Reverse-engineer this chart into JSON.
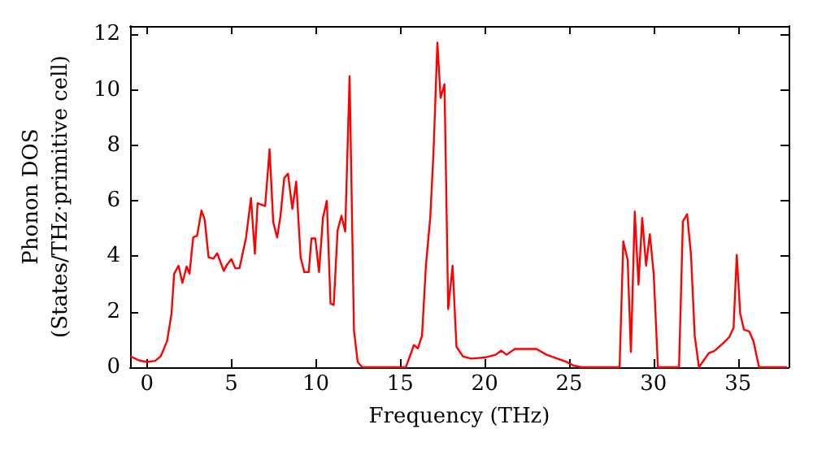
{
  "chart_data": {
    "type": "line",
    "xlabel": "Frequency (THz)",
    "ylabel": "Phonon DOS\n(States/THz·primitive cell)",
    "xlim": [
      -1,
      38
    ],
    "xticks": [
      0,
      5,
      10,
      15,
      20,
      25,
      30,
      35
    ],
    "ylim": [
      0,
      12.3
    ],
    "yticks": [
      0,
      2,
      4,
      6,
      8,
      10,
      12
    ],
    "grid": false,
    "marker": "none",
    "line_style": "solid",
    "series": [
      {
        "color": "#ff0000",
        "x": [
          -0.97,
          -0.48,
          0,
          0.48,
          0.81,
          1.19,
          1.45,
          1.61,
          1.87,
          2.1,
          2.35,
          2.52,
          2.74,
          2.97,
          3.23,
          3.42,
          3.65,
          3.94,
          4.16,
          4.55,
          4.74,
          5.0,
          5.23,
          5.48,
          5.87,
          6.16,
          6.39,
          6.55,
          7.0,
          7.26,
          7.48,
          7.71,
          7.9,
          8.13,
          8.35,
          8.61,
          8.84,
          9.1,
          9.32,
          9.58,
          9.74,
          9.97,
          10.19,
          10.42,
          10.65,
          10.87,
          11.06,
          11.29,
          11.52,
          11.74,
          12.0,
          12.26,
          12.48,
          12.75,
          15.33,
          15.81,
          16.04,
          16.29,
          16.52,
          16.78,
          16.97,
          17.2,
          17.39,
          17.62,
          17.84,
          18.1,
          18.33,
          18.71,
          19.2,
          20.0,
          20.65,
          20.98,
          21.3,
          21.78,
          23.07,
          23.67,
          24.31,
          24.79,
          25.27,
          25.75,
          27.99,
          28.21,
          28.47,
          28.66,
          28.89,
          29.11,
          29.33,
          29.56,
          29.78,
          30.01,
          30.26,
          31.51,
          31.74,
          31.99,
          32.22,
          32.44,
          32.69,
          33.27,
          33.59,
          34.07,
          34.49,
          34.74,
          34.93,
          35.13,
          35.35,
          35.67,
          35.92,
          36.25,
          37.9
        ],
        "values": [
          0.39,
          0.25,
          0.19,
          0.23,
          0.39,
          0.94,
          1.91,
          3.37,
          3.66,
          3.04,
          3.63,
          3.37,
          4.68,
          4.74,
          5.65,
          5.32,
          3.96,
          3.92,
          4.11,
          3.47,
          3.7,
          3.9,
          3.57,
          3.57,
          4.68,
          6.1,
          4.09,
          5.91,
          5.81,
          7.86,
          5.22,
          4.68,
          5.42,
          6.82,
          6.98,
          5.71,
          6.69,
          3.96,
          3.43,
          3.43,
          4.64,
          4.64,
          3.43,
          5.38,
          6.0,
          2.3,
          2.24,
          4.93,
          5.46,
          4.89,
          10.49,
          1.33,
          0.19,
          0,
          0,
          0.8,
          0.68,
          1.13,
          3.66,
          5.42,
          7.76,
          11.7,
          9.71,
          10.2,
          2.1,
          3.66,
          0.74,
          0.39,
          0.31,
          0.35,
          0.45,
          0.6,
          0.45,
          0.66,
          0.66,
          0.45,
          0.31,
          0.21,
          0.06,
          0,
          0,
          4.54,
          3.86,
          0.55,
          5.61,
          2.98,
          5.38,
          3.66,
          4.8,
          3.37,
          0,
          0,
          5.26,
          5.52,
          4.05,
          1.13,
          0,
          0.51,
          0.58,
          0.84,
          1.09,
          1.42,
          4.05,
          1.95,
          1.36,
          1.29,
          0.94,
          0,
          0
        ]
      }
    ]
  }
}
